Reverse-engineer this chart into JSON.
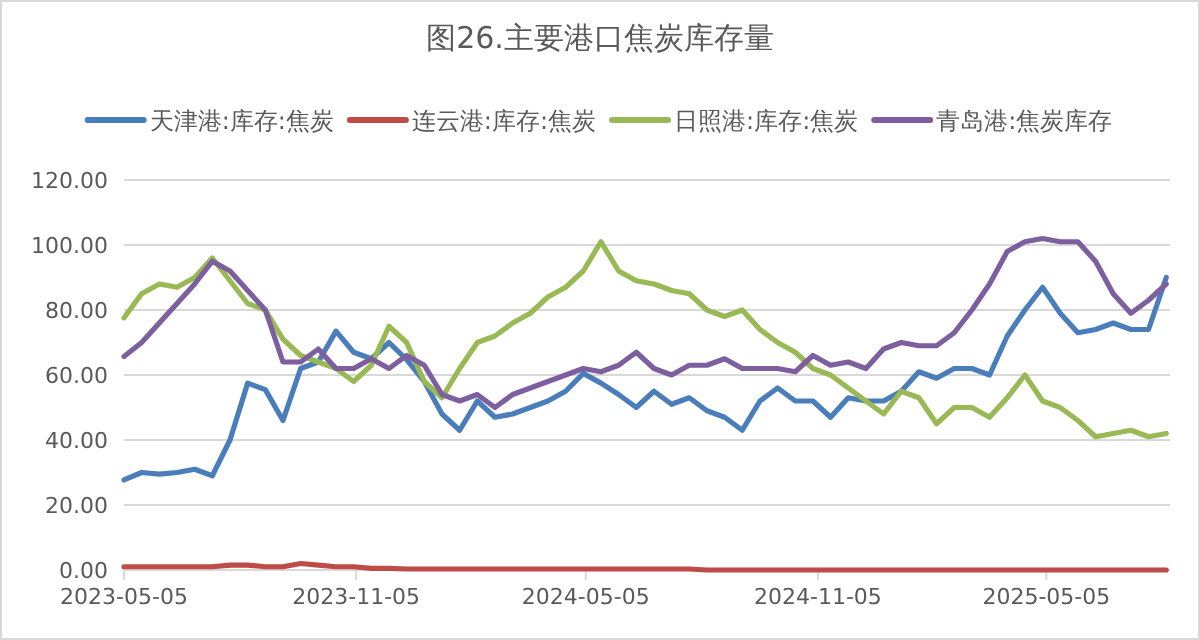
{
  "chart_data": {
    "type": "line",
    "title": "图26.主要港口焦炭库存量",
    "legend": "top",
    "grid": "y",
    "marker": "none",
    "line_style": "solid",
    "x": [
      "2023-05-05",
      "2023-05-19",
      "2023-06-02",
      "2023-06-16",
      "2023-06-30",
      "2023-07-14",
      "2023-07-28",
      "2023-08-11",
      "2023-08-25",
      "2023-09-08",
      "2023-09-22",
      "2023-10-06",
      "2023-10-20",
      "2023-11-03",
      "2023-11-17",
      "2023-12-01",
      "2023-12-15",
      "2023-12-29",
      "2024-01-12",
      "2024-01-26",
      "2024-02-09",
      "2024-02-23",
      "2024-03-08",
      "2024-03-22",
      "2024-04-05",
      "2024-04-19",
      "2024-05-03",
      "2024-05-17",
      "2024-05-31",
      "2024-06-14",
      "2024-06-28",
      "2024-07-12",
      "2024-07-26",
      "2024-08-09",
      "2024-08-23",
      "2024-09-06",
      "2024-09-20",
      "2024-10-04",
      "2024-10-18",
      "2024-11-01",
      "2024-11-15",
      "2024-11-29",
      "2024-12-13",
      "2024-12-27",
      "2025-01-10",
      "2025-01-24",
      "2025-02-07",
      "2025-02-21",
      "2025-03-07",
      "2025-03-21",
      "2025-04-04",
      "2025-04-18",
      "2025-05-02",
      "2025-05-16",
      "2025-05-30",
      "2025-06-13",
      "2025-06-27",
      "2025-07-11",
      "2025-07-25",
      "2025-08-08"
    ],
    "xlim": [
      "2023-05-05",
      "2025-08-11"
    ],
    "xticks": [
      "2023-05-05",
      "2023-11-05",
      "2024-05-05",
      "2024-11-05",
      "2025-05-05"
    ],
    "ylim": [
      0,
      120
    ],
    "yticks": [
      {
        "value": 0,
        "label": "0.00"
      },
      {
        "value": 20,
        "label": "20.00"
      },
      {
        "value": 40,
        "label": "40.00"
      },
      {
        "value": 60,
        "label": "60.00"
      },
      {
        "value": 80,
        "label": "80.00"
      },
      {
        "value": 100,
        "label": "100.00"
      },
      {
        "value": 120,
        "label": "120.00"
      }
    ],
    "series": [
      {
        "name": "天津港:库存:焦炭",
        "color": "#4a7ebb",
        "values": [
          27.7,
          30,
          29.5,
          30,
          31,
          29,
          40,
          57.5,
          55.5,
          46,
          62,
          64,
          73.5,
          67,
          65,
          70,
          64.7,
          58,
          48,
          43,
          52,
          47,
          48,
          50,
          52,
          55,
          60.5,
          57.5,
          54,
          50,
          55,
          51,
          53,
          49,
          47,
          43,
          52,
          56,
          52,
          52,
          47,
          53,
          52,
          52,
          55,
          61,
          59,
          62,
          62,
          60,
          72,
          80,
          87,
          79,
          73,
          74,
          76,
          74,
          74,
          90
        ]
      },
      {
        "name": "连云港:库存:焦炭",
        "color": "#be4b48",
        "values": [
          1,
          1,
          1,
          1,
          1,
          1,
          1.5,
          1.5,
          1,
          1,
          2,
          1.5,
          1,
          1,
          0.5,
          0.5,
          0.3,
          0.3,
          0.3,
          0.3,
          0.3,
          0.3,
          0.3,
          0.3,
          0.3,
          0.3,
          0.3,
          0.3,
          0.3,
          0.3,
          0.3,
          0.3,
          0.3,
          0,
          0,
          0,
          0,
          0,
          0,
          0,
          0,
          0,
          0,
          0,
          0,
          0,
          0,
          0,
          0,
          0,
          0,
          0,
          0,
          0,
          0,
          0,
          0,
          0,
          0,
          0
        ]
      },
      {
        "name": "日照港:库存:焦炭",
        "color": "#98b954",
        "values": [
          77.6,
          85,
          88,
          87,
          90,
          96,
          89,
          82,
          80,
          71,
          66,
          64,
          62,
          58,
          63,
          75,
          70,
          58,
          53,
          62,
          70,
          72,
          76,
          79,
          84,
          87,
          92,
          101,
          92,
          89,
          88,
          86,
          85,
          80,
          78,
          80,
          74,
          70,
          67,
          62,
          60,
          56,
          52,
          48,
          55,
          53,
          45,
          50,
          50,
          47,
          53,
          60,
          52,
          50,
          46,
          41,
          42,
          43,
          41,
          42
        ]
      },
      {
        "name": "青岛港:焦炭库存",
        "color": "#7d5fa0",
        "values": [
          65.7,
          70,
          76,
          82,
          88,
          95,
          92,
          86,
          80,
          64,
          64,
          68,
          62,
          62,
          65,
          62,
          66,
          63,
          54,
          52,
          54,
          50,
          54,
          56,
          58,
          60,
          62,
          61,
          63,
          67,
          62,
          60,
          63,
          63,
          65,
          62,
          62,
          62,
          61,
          66,
          63,
          64,
          62,
          68,
          70,
          69,
          69,
          73,
          80,
          88,
          98,
          101,
          102,
          101,
          101,
          95,
          85,
          79,
          83,
          88
        ]
      }
    ]
  }
}
